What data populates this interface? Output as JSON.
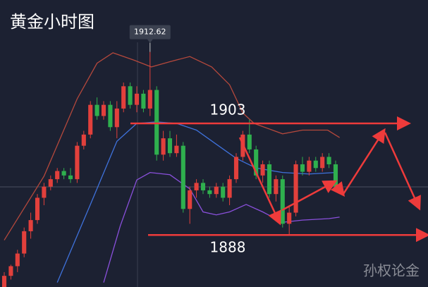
{
  "chart_data": {
    "type": "candlestick",
    "title": "黄金小时图",
    "watermark": "孙权论金",
    "x": [
      0,
      1,
      2,
      3,
      4,
      5,
      6,
      7,
      8,
      9,
      10,
      11,
      12,
      13,
      14,
      15,
      16,
      17,
      18,
      19,
      20,
      21,
      22,
      23,
      24,
      25,
      26,
      27,
      28,
      29,
      30,
      31,
      32,
      33,
      34,
      35,
      36,
      37,
      38,
      39,
      40,
      41,
      42,
      43,
      44,
      45,
      46,
      47,
      48,
      49,
      50
    ],
    "open": [
      1881,
      1882.5,
      1883.8,
      1885.5,
      1888.5,
      1890,
      1893,
      1894.5,
      1895.5,
      1896.6,
      1896,
      1895.5,
      1900,
      1901.5,
      1905.5,
      1904,
      1905.5,
      1902.5,
      1905,
      1908,
      1905.5,
      1907,
      1905,
      1907.5,
      1898.8,
      1901,
      1899,
      1900,
      1891.5,
      1894,
      1895,
      1894,
      1893.5,
      1894.5,
      1893,
      1895.5,
      1898.5,
      1901.5,
      1899.5,
      1896,
      1897.5,
      1893.5,
      1895.5,
      1889.5,
      1891,
      1897.5,
      1896.5,
      1898,
      1897,
      1898.5,
      1897.5
    ],
    "high": [
      1883,
      1884,
      1886,
      1889,
      1891,
      1893.5,
      1895,
      1896,
      1897,
      1897,
      1897,
      1900.5,
      1902,
      1906,
      1906.5,
      1906,
      1906,
      1906,
      1908.5,
      1908.5,
      1908,
      1907.5,
      1912.62,
      1908,
      1902,
      1902,
      1901.5,
      1900.5,
      1894.5,
      1895.5,
      1895.5,
      1894.5,
      1895,
      1895,
      1896,
      1899,
      1902,
      1903.5,
      1900,
      1898,
      1898,
      1896,
      1896,
      1892,
      1898,
      1898.5,
      1898.5,
      1898.5,
      1899,
      1899,
      1898
    ],
    "low": [
      1880,
      1882,
      1883,
      1885,
      1887.5,
      1889.5,
      1892,
      1894,
      1895,
      1895.5,
      1895,
      1895,
      1899.5,
      1901,
      1903.5,
      1903.5,
      1902,
      1901,
      1904.5,
      1905,
      1904.5,
      1904.5,
      1904,
      1898,
      1898,
      1898.5,
      1898.5,
      1891,
      1889.5,
      1893,
      1893.5,
      1893,
      1893,
      1892.5,
      1892,
      1895,
      1898,
      1899,
      1895.5,
      1895,
      1893,
      1892.5,
      1889,
      1888,
      1890.5,
      1896,
      1896,
      1896.5,
      1896.5,
      1897,
      1894
    ],
    "close": [
      1882.5,
      1883.8,
      1885.5,
      1888.5,
      1890,
      1893,
      1894.5,
      1895.5,
      1896.6,
      1896,
      1895.5,
      1900,
      1901.5,
      1905.5,
      1904,
      1905.5,
      1902.5,
      1905,
      1908,
      1905.5,
      1907,
      1905,
      1907.5,
      1898.8,
      1901,
      1899,
      1900,
      1891.5,
      1894,
      1895,
      1894,
      1893.5,
      1894.5,
      1893,
      1895.5,
      1898.5,
      1901.5,
      1899.5,
      1896,
      1897.5,
      1893.5,
      1895.5,
      1889.5,
      1891,
      1897.5,
      1896.5,
      1898,
      1897,
      1898.5,
      1897.5,
      1894.5
    ],
    "up_color": "#e2403c",
    "down_color": "#2fb04e",
    "lines": [
      {
        "color": "#b4483c",
        "x": [
          0,
          6,
          11,
          14,
          16.4,
          19.6,
          22.2,
          25,
          28,
          31.3,
          34,
          36,
          37.7,
          42,
          45,
          48.8,
          50.6
        ],
        "values": [
          1887.3,
          1895.9,
          1906.3,
          1911.1,
          1912.5,
          1911.5,
          1910.6,
          1911.3,
          1912,
          1910.6,
          1908.2,
          1904.4,
          1903,
          1901.6,
          1902.1,
          1902.1,
          1901.1
        ]
      },
      {
        "color": "#3f72dc",
        "x": [
          8,
          13,
          17,
          20,
          23,
          26,
          29,
          32,
          35,
          38,
          42,
          46,
          50
        ],
        "values": [
          1881.6,
          1892.1,
          1900.6,
          1903,
          1903.2,
          1903,
          1902.1,
          1900.2,
          1898.3,
          1897,
          1896.4,
          1896.2,
          1896.4
        ]
      },
      {
        "color": "#8a50dc",
        "x": [
          15,
          17.5,
          20,
          22,
          25,
          28,
          30,
          32,
          34,
          36.5,
          39,
          42,
          45,
          49,
          50.6
        ],
        "values": [
          1881.6,
          1889.2,
          1895.4,
          1896.4,
          1896.1,
          1894.2,
          1891.1,
          1890.7,
          1891.1,
          1892.1,
          1891.1,
          1889.7,
          1890,
          1890.2,
          1890.4
        ]
      }
    ],
    "levels": [
      1903,
      1888
    ],
    "level_color": "#ee3b3b",
    "xlim": [
      -0.64,
      63.94
    ],
    "ylim": [
      1881,
      1919.6
    ]
  }
}
